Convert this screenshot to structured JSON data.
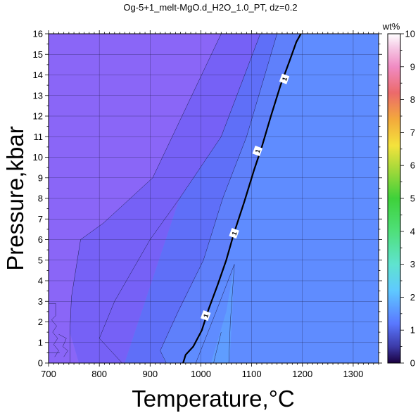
{
  "chart_data": {
    "type": "contour",
    "title": "Og-5+1_melt-MgO.d_H2O_1.0_PT, dz=0.2",
    "xlabel": "Temperature,°C",
    "ylabel": "Pressure,kbar",
    "xlim": [
      700,
      1350
    ],
    "ylim": [
      0,
      16
    ],
    "x_ticks": [
      "700",
      "800",
      "900",
      "1000",
      "1100",
      "1200",
      "1300"
    ],
    "y_ticks": [
      "0",
      "1",
      "2",
      "3",
      "4",
      "5",
      "6",
      "7",
      "8",
      "9",
      "10",
      "11",
      "12",
      "13",
      "14",
      "15",
      "16"
    ],
    "colorbar": {
      "title": "wt%",
      "range": [
        0,
        10
      ],
      "ticks": [
        "0",
        "1",
        "2",
        "3",
        "4",
        "5",
        "6",
        "7",
        "8",
        "9",
        "10"
      ]
    },
    "contour_label": "1",
    "contour_1wt": [
      [
        965,
        0
      ],
      [
        970,
        0.4
      ],
      [
        985,
        0.8
      ],
      [
        1002,
        1.6
      ],
      [
        1015,
        2.6
      ],
      [
        1033,
        3.8
      ],
      [
        1050,
        5.0
      ],
      [
        1065,
        6.3
      ],
      [
        1085,
        7.8
      ],
      [
        1105,
        9.4
      ],
      [
        1120,
        10.5
      ],
      [
        1138,
        12.0
      ],
      [
        1157,
        13.5
      ],
      [
        1175,
        14.7
      ],
      [
        1188,
        15.6
      ],
      [
        1197,
        16.0
      ]
    ],
    "clabels": [
      [
        1010,
        2.3
      ],
      [
        1066,
        6.3
      ],
      [
        1112,
        10.3
      ],
      [
        1165,
        13.8
      ]
    ]
  }
}
